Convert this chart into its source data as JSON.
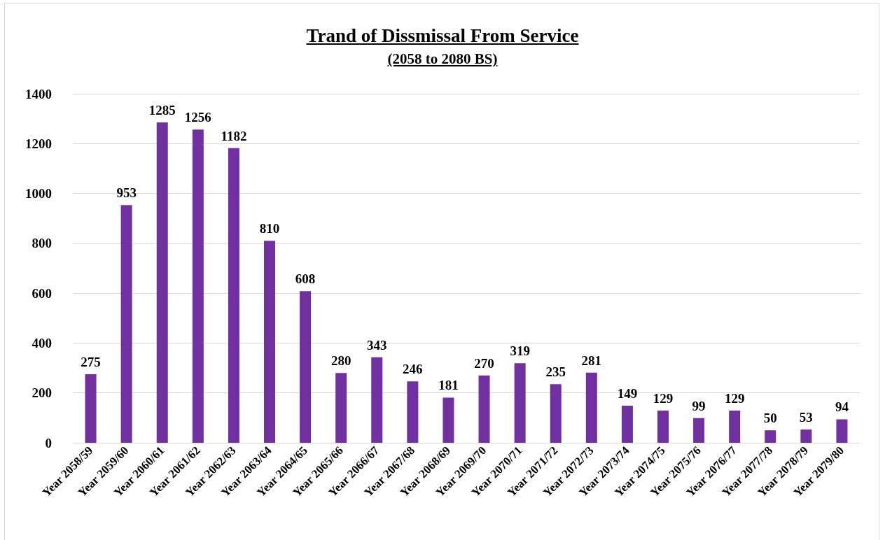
{
  "chart_data": {
    "type": "bar",
    "title": "Trand of Dissmissal From Service",
    "subtitle": "(2058 to 2080 BS)",
    "categories": [
      "Year 2058/59",
      "Year 2059/60",
      "Year 2060/61",
      "Year 2061/62",
      "Year 2062/63",
      "Year 2063/64",
      "Year 2064/65",
      "Year 2065/66",
      "Year 2066/67",
      "Year 2067/68",
      "Year 2068/69",
      "Year 2069/70",
      "Year 2070/71",
      "Year 2071/72",
      "Year 2072/73",
      "Year 2073/74",
      "Year 2074/75",
      "Year 2075/76",
      "Year 2076/77",
      "Year 2077/78",
      "Year 2078/79",
      "Year 2079/80"
    ],
    "values": [
      275,
      953,
      1285,
      1256,
      1182,
      810,
      608,
      280,
      343,
      246,
      181,
      270,
      319,
      235,
      281,
      149,
      129,
      99,
      129,
      50,
      53,
      94
    ],
    "color": "#7030a0",
    "ylim": [
      0,
      1400
    ],
    "yticks": [
      0,
      200,
      400,
      600,
      800,
      1000,
      1200,
      1400
    ],
    "grid": true,
    "data_labels": true
  }
}
